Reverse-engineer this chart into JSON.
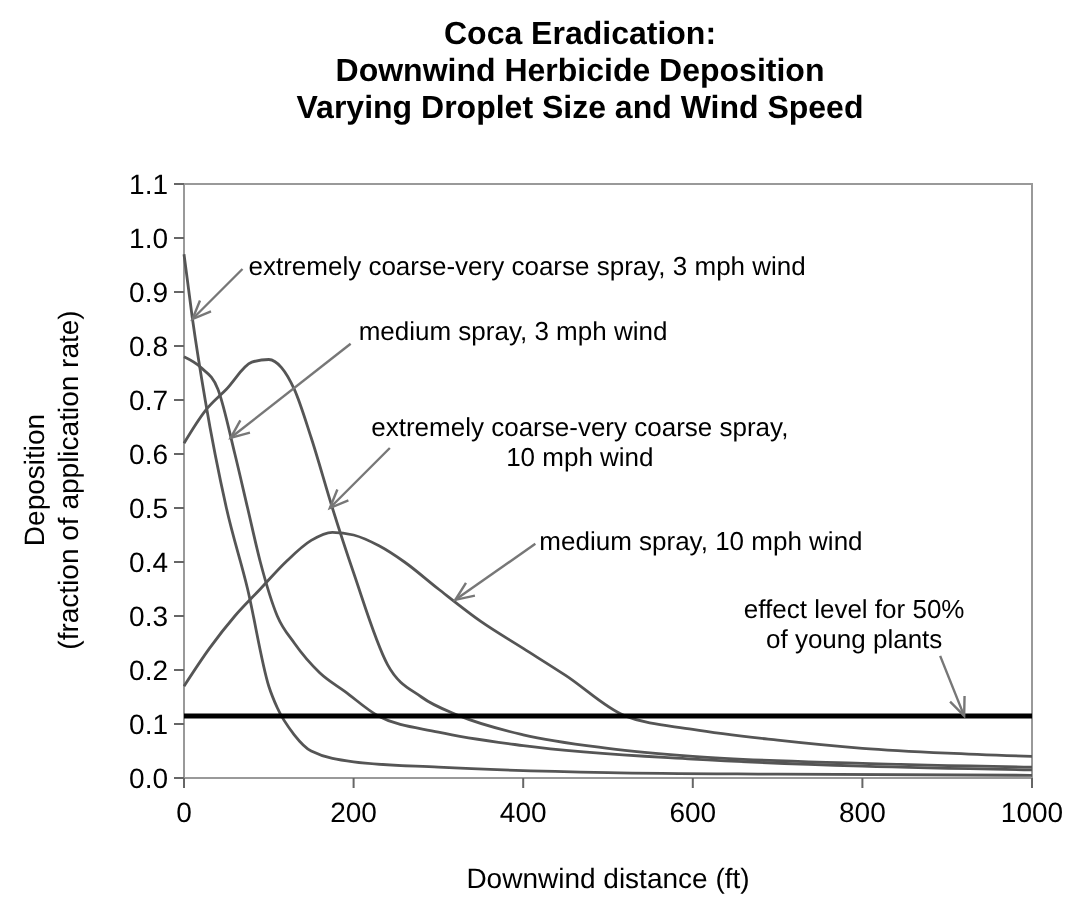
{
  "chart_data": {
    "type": "line",
    "title": "Coca Eradication:\nDownwind Herbicide Deposition\nVarying Droplet Size and Wind Speed",
    "xlabel": "Downwind distance (ft)",
    "ylabel": "Deposition\n(fraction of application rate)",
    "xlim": [
      0,
      1000
    ],
    "xticks": [
      0,
      200,
      400,
      600,
      800,
      1000
    ],
    "ylim": [
      0,
      1.1
    ],
    "yticks": [
      {
        "value": 0,
        "label": "0.0"
      },
      0.1,
      0.2,
      0.3,
      0.4,
      0.5,
      0.6,
      0.7,
      0.8,
      0.9,
      {
        "value": 1,
        "label": "1.0"
      },
      1.1
    ],
    "grid": false,
    "marker": "none",
    "line_style": "solid",
    "series": [
      {
        "color": "#555555",
        "x": [
          0,
          10,
          25,
          50,
          75,
          100,
          110,
          130,
          150,
          200,
          300,
          500,
          700,
          1000
        ],
        "values": [
          0.97,
          0.85,
          0.7,
          0.5,
          0.35,
          0.17,
          0.13,
          0.08,
          0.05,
          0.03,
          0.02,
          0.01,
          0.007,
          0.005
        ]
      },
      {
        "color": "#555555",
        "x": [
          0,
          20,
          40,
          60,
          75,
          90,
          110,
          130,
          160,
          190,
          229,
          300,
          400,
          600,
          800,
          1000
        ],
        "values": [
          0.78,
          0.76,
          0.72,
          0.6,
          0.5,
          0.4,
          0.3,
          0.25,
          0.195,
          0.16,
          0.115,
          0.085,
          0.06,
          0.035,
          0.022,
          0.015
        ]
      },
      {
        "color": "#555555",
        "x": [
          0,
          25,
          50,
          80,
          100,
          115,
          130,
          150,
          175,
          200,
          240,
          280,
          325,
          400,
          500,
          600,
          800,
          1000
        ],
        "values": [
          0.62,
          0.68,
          0.72,
          0.77,
          0.775,
          0.76,
          0.72,
          0.63,
          0.5,
          0.38,
          0.21,
          0.15,
          0.115,
          0.08,
          0.055,
          0.04,
          0.027,
          0.02
        ]
      },
      {
        "color": "#555555",
        "x": [
          0,
          30,
          60,
          90,
          120,
          150,
          175,
          200,
          230,
          260,
          300,
          350,
          400,
          450,
          520,
          600,
          700,
          800,
          900,
          1000
        ],
        "values": [
          0.17,
          0.24,
          0.3,
          0.35,
          0.4,
          0.44,
          0.455,
          0.45,
          0.43,
          0.4,
          0.35,
          0.29,
          0.24,
          0.19,
          0.115,
          0.09,
          0.07,
          0.055,
          0.046,
          0.04
        ]
      }
    ],
    "ref_lines": [
      {
        "axis": "y",
        "value": 0.115,
        "label": "effect level for 50%\nof young plants",
        "color": "#000000"
      }
    ],
    "annotations": [
      {
        "text": "extremely coarse-very coarse spray, 3 mph wind",
        "x": 10,
        "y": 0.85
      },
      {
        "text": "medium spray, 3 mph wind",
        "x": 55,
        "y": 0.63
      },
      {
        "text": "extremely coarse-very coarse spray,\n10 mph wind",
        "x": 172,
        "y": 0.5
      },
      {
        "text": "medium spray, 10 mph wind",
        "x": 320,
        "y": 0.33
      }
    ]
  }
}
